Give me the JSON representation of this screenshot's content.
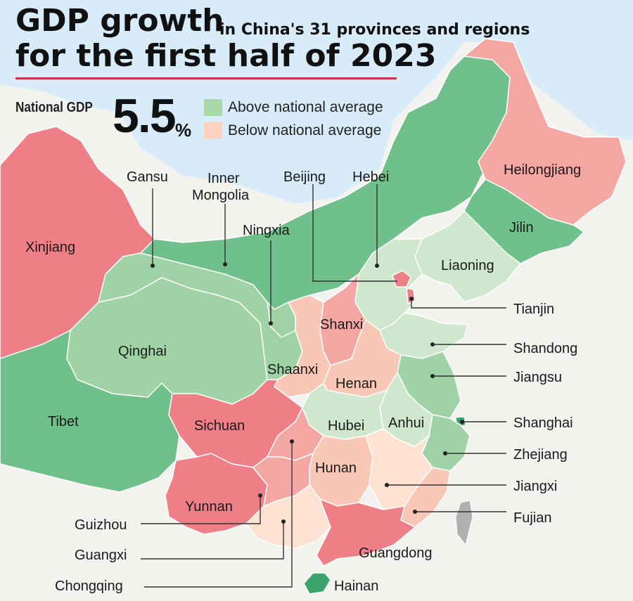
{
  "title": {
    "line1_big": "GDP growth",
    "line1_small": "in China's 31 provinces and regions",
    "line2": "for the first half of 2023"
  },
  "national": {
    "label": "National GDP",
    "value": "5.5",
    "unit": "%"
  },
  "legend": {
    "above": {
      "label": "Above national average",
      "color": "#a9d9a6"
    },
    "below": {
      "label": "Below national average",
      "color": "#fbd3bd"
    }
  },
  "colors": {
    "sea": "#d7ecf8",
    "dark_green": "#6fc08a",
    "mid_green": "#9fd2a4",
    "light_green": "#cfe8cd",
    "dark_red": "#ee7f86",
    "mid_red": "#f4a6a3",
    "light_salmon": "#f8c7b6",
    "taiwan": "#b0b0b0"
  },
  "regions": {
    "xinjiang": "Xinjiang",
    "tibet": "Tibet",
    "qinghai": "Qinghai",
    "gansu": "Gansu",
    "inner_mongolia_1": "Inner",
    "inner_mongolia_2": "Mongolia",
    "ningxia": "Ningxia",
    "beijing": "Beijing",
    "hebei": "Hebei",
    "heilongjiang": "Heilongjiang",
    "jilin": "Jilin",
    "liaoning": "Liaoning",
    "tianjin": "Tianjin",
    "shanxi": "Shanxi",
    "shandong": "Shandong",
    "shaanxi": "Shaanxi",
    "henan": "Henan",
    "jiangsu": "Jiangsu",
    "sichuan": "Sichuan",
    "hubei": "Hubei",
    "anhui": "Anhui",
    "shanghai": "Shanghai",
    "zhejiang": "Zhejiang",
    "hunan": "Hunan",
    "jiangxi": "Jiangxi",
    "yunnan": "Yunnan",
    "fujian": "Fujian",
    "guizhou": "Guizhou",
    "guangxi": "Guangxi",
    "guangdong": "Guangdong",
    "chongqing": "Chongqing",
    "hainan": "Hainan"
  }
}
